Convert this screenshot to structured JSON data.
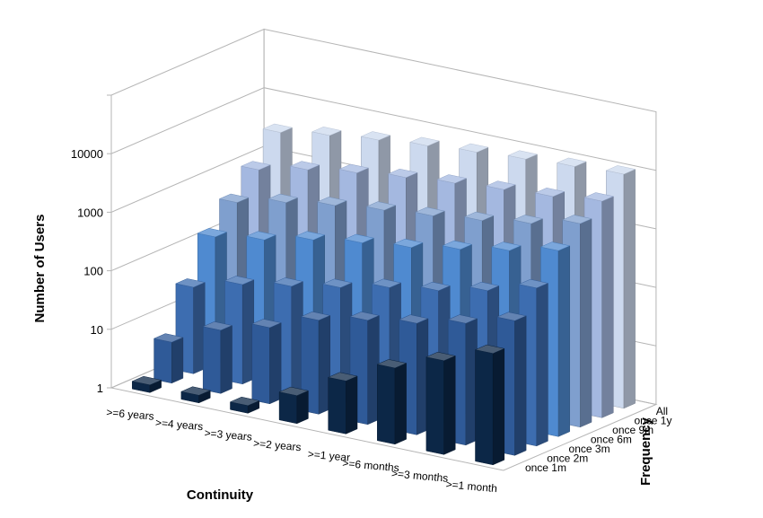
{
  "chart_data": {
    "type": "bar",
    "title": "",
    "zlabel": "Number of Users",
    "xlabel": "Continuity",
    "ylabel": "Frequency",
    "zscale": "log",
    "zlim": [
      1,
      100000
    ],
    "z_ticks": [
      "1",
      "10",
      "100",
      "1000",
      "10000"
    ],
    "x_categories": [
      ">=6 years",
      ">=4 years",
      ">=3 years",
      ">=2 years",
      ">=1 year",
      ">=6 months",
      ">=3 months",
      ">=1 month"
    ],
    "y_categories": [
      "once 1m",
      "once 2m",
      "once 3m",
      "once 6m",
      "once 9m",
      "once 1y",
      "All"
    ],
    "colors": [
      "#0c2747",
      "#2f5a98",
      "#3d6db0",
      "#4f8ad0",
      "#7f9fce",
      "#a4b8e0",
      "#ccd9ee"
    ],
    "series": [
      {
        "name": "once 1m",
        "values": [
          1,
          1,
          1,
          3,
          8,
          20,
          40,
          80
        ]
      },
      {
        "name": "once 2m",
        "values": [
          5,
          12,
          20,
          40,
          60,
          80,
          120,
          200
        ]
      },
      {
        "name": "once 3m",
        "values": [
          30,
          50,
          70,
          100,
          150,
          200,
          300,
          500
        ]
      },
      {
        "name": "once 6m",
        "values": [
          150,
          200,
          300,
          400,
          500,
          700,
          1000,
          1500
        ]
      },
      {
        "name": "once 9m",
        "values": [
          400,
          600,
          800,
          1000,
          1200,
          1500,
          2000,
          3000
        ]
      },
      {
        "name": "once 1y",
        "values": [
          1000,
          1500,
          2000,
          2500,
          3000,
          3500,
          4000,
          5000
        ]
      },
      {
        "name": "All",
        "values": [
          3000,
          4000,
          5000,
          6000,
          7000,
          8000,
          9000,
          10000
        ]
      }
    ],
    "grid": true,
    "legend": "none"
  }
}
